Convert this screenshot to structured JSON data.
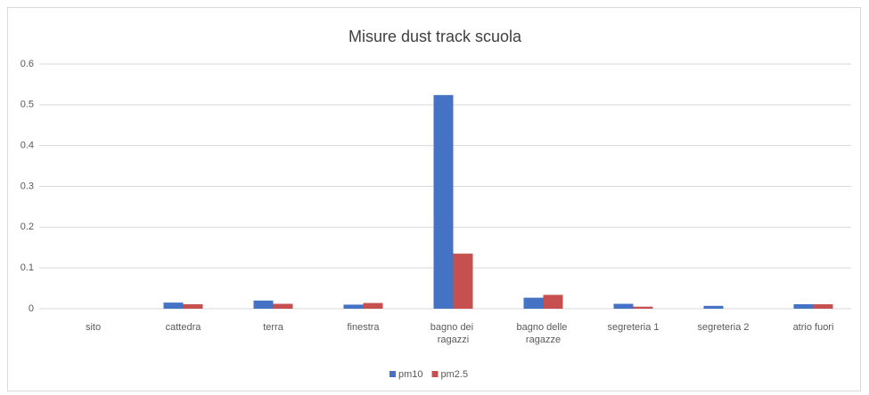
{
  "chart_data": {
    "type": "bar",
    "title": "Misure dust track scuola",
    "categories": [
      "sito",
      "cattedra",
      "terra",
      "finestra",
      "bagno dei ragazzi",
      "bagno delle ragazze",
      "segreteria 1",
      "segreteria 2",
      "atrio fuori"
    ],
    "series": [
      {
        "name": "pm10",
        "color": "#4472c4",
        "values": [
          null,
          0.015,
          0.02,
          0.01,
          0.524,
          0.027,
          0.012,
          0.007,
          0.011
        ]
      },
      {
        "name": "pm2.5",
        "color": "#c5504f",
        "values": [
          null,
          0.011,
          0.012,
          0.014,
          0.135,
          0.034,
          0.005,
          0,
          0.011
        ]
      }
    ],
    "ylim": [
      0,
      0.6
    ],
    "yticks": [
      0,
      0.1,
      0.2,
      0.3,
      0.4,
      0.5,
      0.6
    ],
    "grid": true,
    "legend": "bottom"
  }
}
